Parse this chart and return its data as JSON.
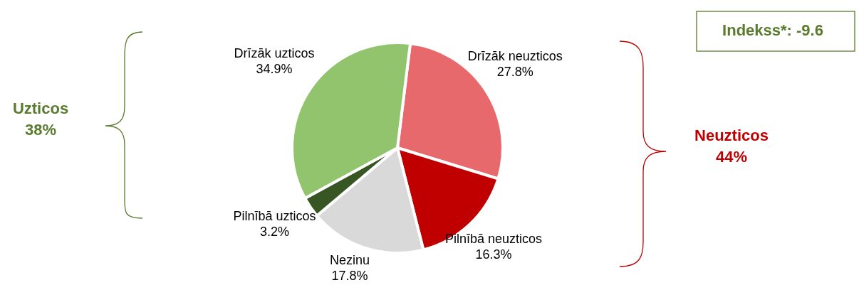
{
  "chart_data": {
    "type": "pie",
    "categories": [
      "Drīzāk neuzticos",
      "Pilnībā neuzticos",
      "Nezinu",
      "Pilnībā uzticos",
      "Drīzāk uzticos"
    ],
    "values": [
      27.8,
      16.3,
      17.8,
      3.2,
      34.9
    ],
    "value_labels": [
      "27.8%",
      "16.3%",
      "17.8%",
      "3.2%",
      "34.9%"
    ],
    "colors": [
      "#e8696b",
      "#c00000",
      "#d9d9d9",
      "#375623",
      "#92c46e"
    ],
    "annotations": [
      "Uzticos\n38%",
      "Neuzticos\n44%",
      "Indekss*: -9.6"
    ]
  }
}
